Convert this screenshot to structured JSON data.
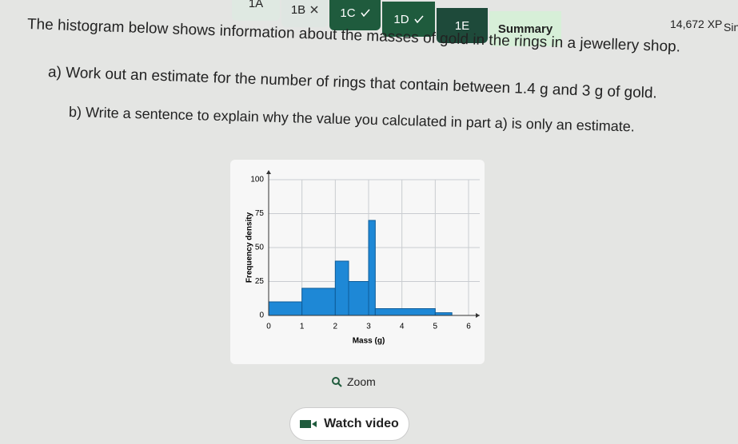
{
  "tabs": [
    "1A",
    "1B",
    "1C",
    "1D",
    "1E",
    "Summary"
  ],
  "xp": "14,672 XP",
  "user": "Sin",
  "question": {
    "intro": "The histogram below shows information about the masses of gold in the rings in a jewellery shop.",
    "part_a": "a) Work out an estimate for the number of rings that contain between 1.4 g and 3 g of gold.",
    "part_b": "b) Write a sentence to explain why the value you calculated in part a) is only an estimate."
  },
  "chart_data": {
    "type": "histogram",
    "x_label": "Mass (g)",
    "y_label": "Frequency density",
    "bins": [
      0,
      1,
      2,
      2.4,
      3,
      3.2,
      5,
      5.5
    ],
    "counts": [
      10,
      20,
      40,
      25,
      70,
      5,
      2
    ],
    "color": "#1e88d6",
    "xlim": [
      0,
      6
    ],
    "ylim": [
      0,
      100
    ],
    "xticks": [
      0,
      1,
      2,
      3,
      4,
      5,
      6
    ],
    "yticks": [
      0,
      25,
      50,
      75,
      100
    ],
    "grid": true
  },
  "buttons": {
    "zoom": "Zoom",
    "watch_video": "Watch video"
  }
}
